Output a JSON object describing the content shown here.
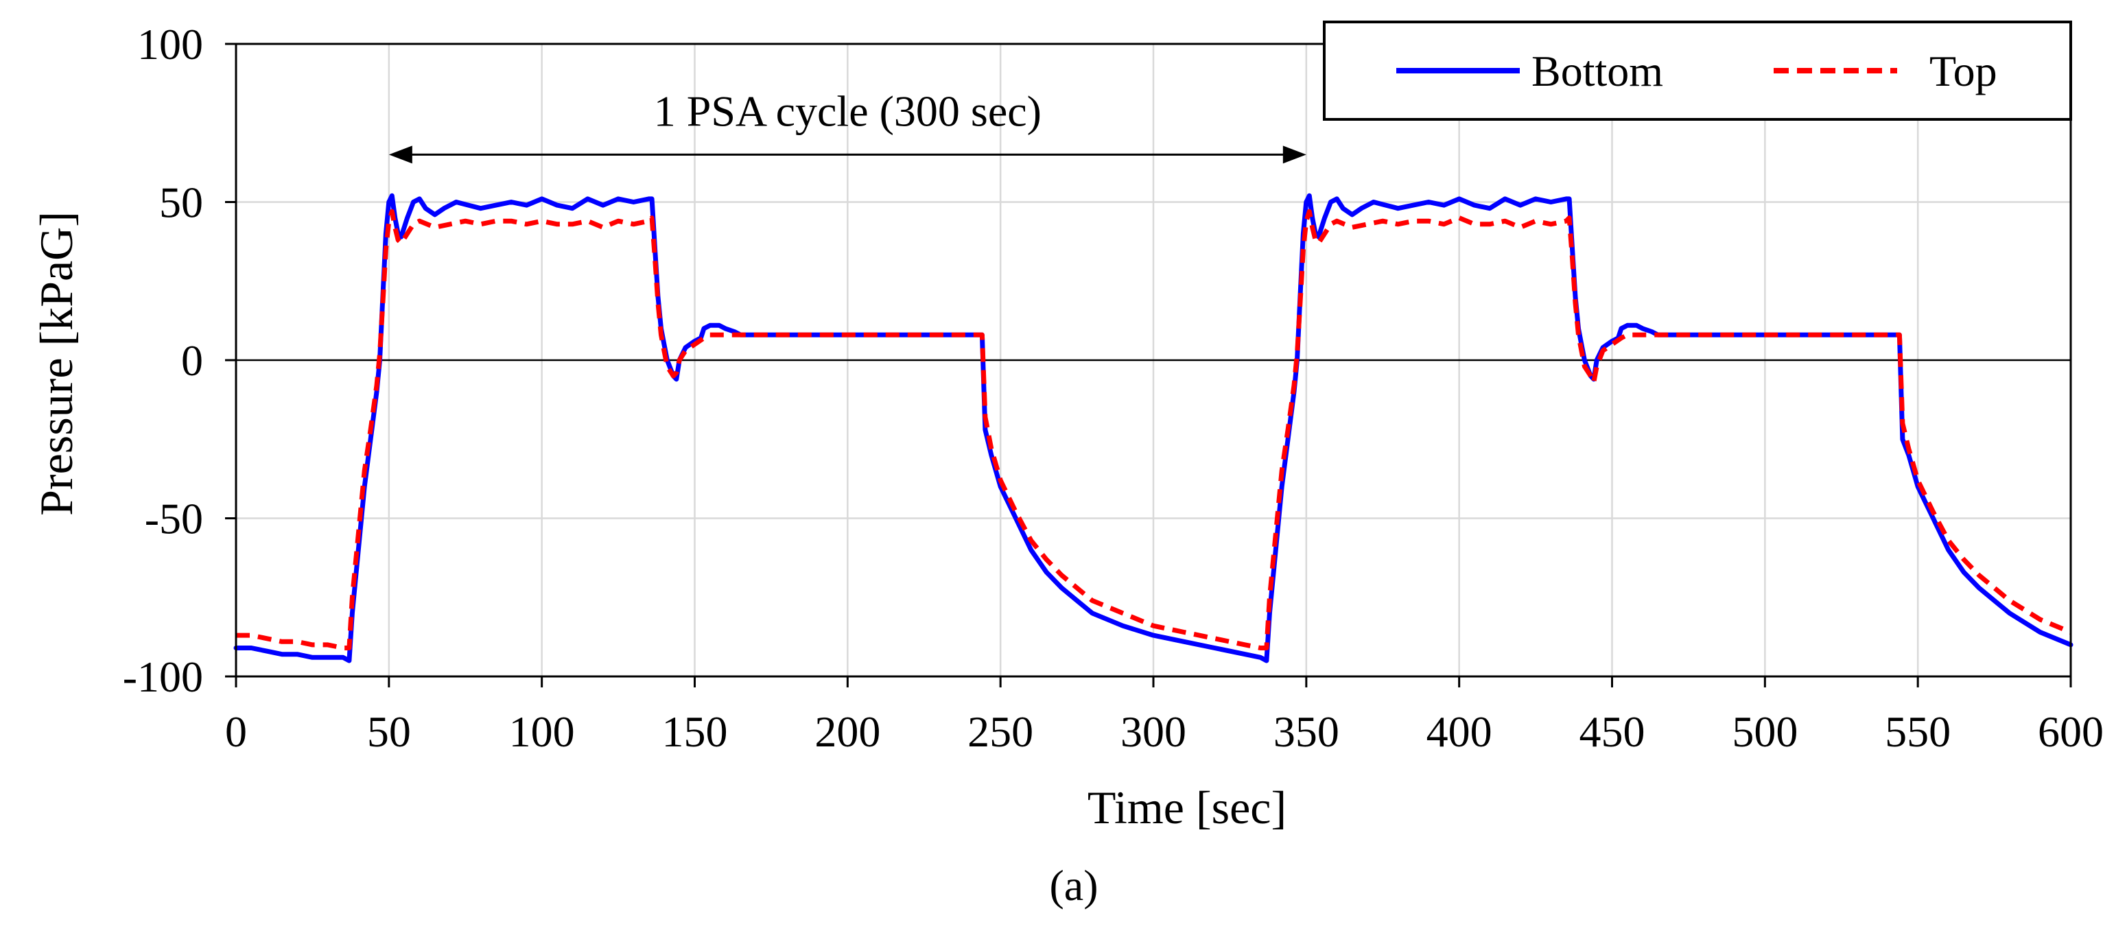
{
  "chart_data": {
    "type": "line",
    "title": "",
    "xlabel": "Time [sec]",
    "ylabel": "Pressure [kPaG]",
    "xlim": [
      0,
      600
    ],
    "ylim": [
      -100,
      100
    ],
    "xticks": [
      0,
      50,
      100,
      150,
      200,
      250,
      300,
      350,
      400,
      450,
      500,
      550,
      600
    ],
    "yticks": [
      -100,
      -50,
      0,
      50,
      100
    ],
    "grid": true,
    "legend_position": "top-right",
    "panel_label": "(a)",
    "annotation": {
      "text": "1 PSA cycle (300 sec)",
      "x_start": 50,
      "x_end": 350,
      "y": 65
    },
    "series": [
      {
        "name": "Bottom",
        "color": "#0000FF",
        "style": "solid",
        "points": [
          [
            0,
            -91
          ],
          [
            5,
            -91
          ],
          [
            10,
            -92
          ],
          [
            15,
            -93
          ],
          [
            20,
            -93
          ],
          [
            25,
            -94
          ],
          [
            30,
            -94
          ],
          [
            35,
            -94
          ],
          [
            37,
            -95
          ],
          [
            38,
            -80
          ],
          [
            40,
            -60
          ],
          [
            42,
            -40
          ],
          [
            44,
            -25
          ],
          [
            46,
            -10
          ],
          [
            47,
            0
          ],
          [
            48,
            20
          ],
          [
            49,
            40
          ],
          [
            50,
            50
          ],
          [
            51,
            52
          ],
          [
            52,
            45
          ],
          [
            53,
            40
          ],
          [
            54,
            39
          ],
          [
            56,
            45
          ],
          [
            58,
            50
          ],
          [
            60,
            51
          ],
          [
            62,
            48
          ],
          [
            65,
            46
          ],
          [
            68,
            48
          ],
          [
            72,
            50
          ],
          [
            76,
            49
          ],
          [
            80,
            48
          ],
          [
            85,
            49
          ],
          [
            90,
            50
          ],
          [
            95,
            49
          ],
          [
            100,
            51
          ],
          [
            105,
            49
          ],
          [
            110,
            48
          ],
          [
            115,
            51
          ],
          [
            120,
            49
          ],
          [
            125,
            51
          ],
          [
            130,
            50
          ],
          [
            135,
            51
          ],
          [
            136,
            51
          ],
          [
            137,
            35
          ],
          [
            138,
            20
          ],
          [
            139,
            10
          ],
          [
            140,
            5
          ],
          [
            141,
            0
          ],
          [
            143,
            -5
          ],
          [
            144,
            -6
          ],
          [
            145,
            0
          ],
          [
            147,
            4
          ],
          [
            150,
            6
          ],
          [
            152,
            7
          ],
          [
            153,
            10
          ],
          [
            155,
            11
          ],
          [
            158,
            11
          ],
          [
            160,
            10
          ],
          [
            163,
            9
          ],
          [
            165,
            8
          ],
          [
            180,
            8
          ],
          [
            200,
            8
          ],
          [
            220,
            8
          ],
          [
            244,
            8
          ],
          [
            245,
            -22
          ],
          [
            247,
            -30
          ],
          [
            250,
            -40
          ],
          [
            255,
            -50
          ],
          [
            260,
            -60
          ],
          [
            265,
            -67
          ],
          [
            270,
            -72
          ],
          [
            275,
            -76
          ],
          [
            280,
            -80
          ],
          [
            290,
            -84
          ],
          [
            300,
            -87
          ],
          [
            310,
            -89
          ],
          [
            320,
            -91
          ],
          [
            330,
            -93
          ],
          [
            335,
            -94
          ],
          [
            337,
            -95
          ],
          [
            338,
            -80
          ],
          [
            340,
            -60
          ],
          [
            342,
            -40
          ],
          [
            344,
            -25
          ],
          [
            346,
            -10
          ],
          [
            347,
            0
          ],
          [
            348,
            20
          ],
          [
            349,
            40
          ],
          [
            350,
            50
          ],
          [
            351,
            52
          ],
          [
            352,
            45
          ],
          [
            353,
            40
          ],
          [
            354,
            39
          ],
          [
            356,
            45
          ],
          [
            358,
            50
          ],
          [
            360,
            51
          ],
          [
            362,
            48
          ],
          [
            365,
            46
          ],
          [
            368,
            48
          ],
          [
            372,
            50
          ],
          [
            376,
            49
          ],
          [
            380,
            48
          ],
          [
            385,
            49
          ],
          [
            390,
            50
          ],
          [
            395,
            49
          ],
          [
            400,
            51
          ],
          [
            405,
            49
          ],
          [
            410,
            48
          ],
          [
            415,
            51
          ],
          [
            420,
            49
          ],
          [
            425,
            51
          ],
          [
            430,
            50
          ],
          [
            435,
            51
          ],
          [
            436,
            51
          ],
          [
            437,
            35
          ],
          [
            438,
            20
          ],
          [
            439,
            10
          ],
          [
            440,
            5
          ],
          [
            441,
            0
          ],
          [
            443,
            -5
          ],
          [
            444,
            -6
          ],
          [
            445,
            0
          ],
          [
            447,
            4
          ],
          [
            450,
            6
          ],
          [
            452,
            7
          ],
          [
            453,
            10
          ],
          [
            455,
            11
          ],
          [
            458,
            11
          ],
          [
            460,
            10
          ],
          [
            463,
            9
          ],
          [
            465,
            8
          ],
          [
            480,
            8
          ],
          [
            500,
            8
          ],
          [
            520,
            8
          ],
          [
            544,
            8
          ],
          [
            545,
            -25
          ],
          [
            547,
            -30
          ],
          [
            550,
            -40
          ],
          [
            555,
            -50
          ],
          [
            560,
            -60
          ],
          [
            565,
            -67
          ],
          [
            570,
            -72
          ],
          [
            575,
            -76
          ],
          [
            580,
            -80
          ],
          [
            590,
            -86
          ],
          [
            600,
            -90
          ]
        ]
      },
      {
        "name": "Top",
        "color": "#FF0000",
        "style": "dashed",
        "points": [
          [
            0,
            -87
          ],
          [
            5,
            -87
          ],
          [
            10,
            -88
          ],
          [
            15,
            -89
          ],
          [
            20,
            -89
          ],
          [
            25,
            -90
          ],
          [
            30,
            -90
          ],
          [
            35,
            -91
          ],
          [
            37,
            -91
          ],
          [
            38,
            -75
          ],
          [
            40,
            -55
          ],
          [
            42,
            -35
          ],
          [
            44,
            -22
          ],
          [
            46,
            -8
          ],
          [
            47,
            2
          ],
          [
            48,
            18
          ],
          [
            49,
            35
          ],
          [
            50,
            44
          ],
          [
            51,
            47
          ],
          [
            52,
            42
          ],
          [
            53,
            38
          ],
          [
            54,
            37
          ],
          [
            56,
            40
          ],
          [
            58,
            43
          ],
          [
            60,
            44
          ],
          [
            65,
            42
          ],
          [
            70,
            43
          ],
          [
            75,
            44
          ],
          [
            80,
            43
          ],
          [
            85,
            44
          ],
          [
            90,
            44
          ],
          [
            95,
            43
          ],
          [
            100,
            44
          ],
          [
            105,
            43
          ],
          [
            110,
            43
          ],
          [
            115,
            44
          ],
          [
            120,
            42
          ],
          [
            125,
            44
          ],
          [
            130,
            43
          ],
          [
            135,
            44
          ],
          [
            136,
            45
          ],
          [
            137,
            32
          ],
          [
            138,
            18
          ],
          [
            139,
            8
          ],
          [
            140,
            3
          ],
          [
            141,
            -2
          ],
          [
            143,
            -5
          ],
          [
            144,
            -4
          ],
          [
            145,
            0
          ],
          [
            147,
            3
          ],
          [
            150,
            5
          ],
          [
            153,
            7
          ],
          [
            155,
            8
          ],
          [
            160,
            8
          ],
          [
            165,
            8
          ],
          [
            180,
            8
          ],
          [
            200,
            8
          ],
          [
            220,
            8
          ],
          [
            244,
            8
          ],
          [
            245,
            -18
          ],
          [
            247,
            -28
          ],
          [
            250,
            -38
          ],
          [
            255,
            -48
          ],
          [
            260,
            -57
          ],
          [
            265,
            -63
          ],
          [
            270,
            -68
          ],
          [
            275,
            -72
          ],
          [
            280,
            -76
          ],
          [
            290,
            -80
          ],
          [
            300,
            -84
          ],
          [
            310,
            -86
          ],
          [
            320,
            -88
          ],
          [
            330,
            -90
          ],
          [
            335,
            -91
          ],
          [
            337,
            -91
          ],
          [
            338,
            -75
          ],
          [
            340,
            -55
          ],
          [
            342,
            -35
          ],
          [
            344,
            -22
          ],
          [
            346,
            -8
          ],
          [
            347,
            2
          ],
          [
            348,
            18
          ],
          [
            349,
            35
          ],
          [
            350,
            44
          ],
          [
            351,
            47
          ],
          [
            352,
            42
          ],
          [
            353,
            38
          ],
          [
            354,
            37
          ],
          [
            356,
            40
          ],
          [
            358,
            43
          ],
          [
            360,
            44
          ],
          [
            365,
            42
          ],
          [
            370,
            43
          ],
          [
            375,
            44
          ],
          [
            380,
            43
          ],
          [
            385,
            44
          ],
          [
            390,
            44
          ],
          [
            395,
            43
          ],
          [
            400,
            45
          ],
          [
            405,
            43
          ],
          [
            410,
            43
          ],
          [
            415,
            44
          ],
          [
            420,
            42
          ],
          [
            425,
            44
          ],
          [
            430,
            43
          ],
          [
            435,
            44
          ],
          [
            436,
            45
          ],
          [
            437,
            32
          ],
          [
            438,
            18
          ],
          [
            439,
            8
          ],
          [
            440,
            3
          ],
          [
            441,
            -2
          ],
          [
            443,
            -5
          ],
          [
            444,
            -7
          ],
          [
            445,
            -2
          ],
          [
            447,
            3
          ],
          [
            450,
            5
          ],
          [
            453,
            7
          ],
          [
            455,
            8
          ],
          [
            460,
            8
          ],
          [
            465,
            8
          ],
          [
            480,
            8
          ],
          [
            500,
            8
          ],
          [
            520,
            8
          ],
          [
            544,
            8
          ],
          [
            545,
            -20
          ],
          [
            547,
            -28
          ],
          [
            550,
            -38
          ],
          [
            555,
            -48
          ],
          [
            560,
            -57
          ],
          [
            565,
            -63
          ],
          [
            570,
            -68
          ],
          [
            575,
            -72
          ],
          [
            580,
            -76
          ],
          [
            590,
            -82
          ],
          [
            600,
            -86
          ]
        ]
      }
    ]
  }
}
